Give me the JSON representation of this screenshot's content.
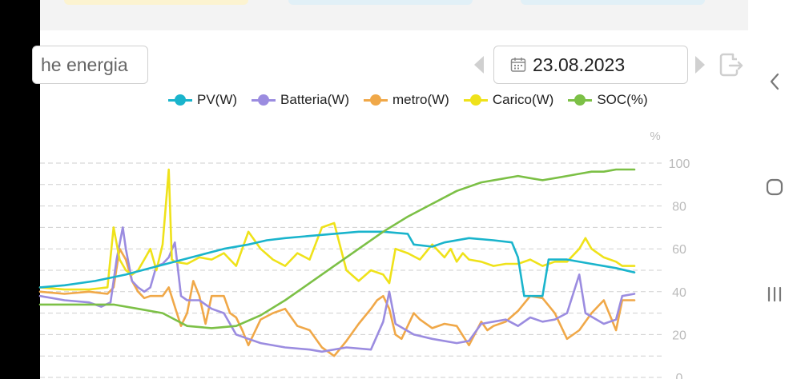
{
  "search": {
    "text": "he energia"
  },
  "date": {
    "value": "23.08.2023"
  },
  "colors": {
    "pv": "#1ab4cc",
    "battery": "#9b8ce0",
    "meter": "#f0a848",
    "load": "#efe21a",
    "soc": "#7cc046"
  },
  "icons": {
    "calendar": "calendar-icon",
    "prev": "prev-day-icon",
    "next": "next-day-icon",
    "export": "export-icon",
    "back": "back-icon",
    "home": "home-icon",
    "recents": "recents-icon"
  },
  "chart_data": {
    "type": "line",
    "legend_position": "top-right",
    "grid": true,
    "right_axis_unit": "%",
    "right_axis_ticks": [
      "100",
      "80",
      "60",
      "40",
      "20",
      "0"
    ],
    "ylim": [
      0,
      100
    ],
    "series": [
      {
        "name": "PV(W)",
        "key": "pv",
        "points": [
          [
            0,
            42
          ],
          [
            4,
            43
          ],
          [
            9,
            45
          ],
          [
            14,
            48
          ],
          [
            18,
            51
          ],
          [
            22,
            54
          ],
          [
            26,
            57
          ],
          [
            30,
            60
          ],
          [
            34,
            62
          ],
          [
            37,
            64
          ],
          [
            40,
            65
          ],
          [
            44,
            66
          ],
          [
            48,
            67
          ],
          [
            52,
            68
          ],
          [
            56,
            68
          ],
          [
            60,
            67
          ],
          [
            61,
            62
          ],
          [
            64,
            61
          ],
          [
            66,
            63
          ],
          [
            70,
            65
          ],
          [
            74,
            64
          ],
          [
            77,
            63
          ],
          [
            78,
            56
          ],
          [
            79,
            38
          ],
          [
            82,
            38
          ],
          [
            83,
            55
          ],
          [
            86,
            55
          ],
          [
            90,
            53
          ],
          [
            94,
            51
          ],
          [
            97,
            49
          ]
        ]
      },
      {
        "name": "Batteria(W)",
        "key": "battery",
        "points": [
          [
            0,
            38
          ],
          [
            4,
            36
          ],
          [
            8,
            35
          ],
          [
            10,
            33
          ],
          [
            11.5,
            35
          ],
          [
            12.5,
            55
          ],
          [
            13.5,
            70
          ],
          [
            14,
            60
          ],
          [
            15,
            45
          ],
          [
            16,
            42
          ],
          [
            17,
            40
          ],
          [
            18,
            42
          ],
          [
            19,
            52
          ],
          [
            20,
            53
          ],
          [
            21,
            56
          ],
          [
            22,
            63
          ],
          [
            23,
            38
          ],
          [
            24,
            36
          ],
          [
            26,
            36
          ],
          [
            28,
            32
          ],
          [
            30,
            30
          ],
          [
            32,
            20
          ],
          [
            34,
            18
          ],
          [
            36,
            16
          ],
          [
            40,
            14
          ],
          [
            44,
            13
          ],
          [
            46,
            12
          ],
          [
            50,
            14
          ],
          [
            54,
            13
          ],
          [
            56,
            26
          ],
          [
            57,
            40
          ],
          [
            58,
            25
          ],
          [
            61,
            20
          ],
          [
            64,
            18
          ],
          [
            68,
            16
          ],
          [
            70,
            17
          ],
          [
            72,
            25
          ],
          [
            74,
            26
          ],
          [
            76,
            27
          ],
          [
            78,
            24
          ],
          [
            80,
            28
          ],
          [
            82,
            26
          ],
          [
            84,
            27
          ],
          [
            86,
            30
          ],
          [
            88,
            48
          ],
          [
            89,
            30
          ],
          [
            92,
            25
          ],
          [
            94,
            27
          ],
          [
            95,
            38
          ],
          [
            97,
            39
          ]
        ]
      },
      {
        "name": "metro(W)",
        "key": "meter",
        "points": [
          [
            0,
            40
          ],
          [
            4,
            39
          ],
          [
            8,
            40
          ],
          [
            11,
            39
          ],
          [
            12,
            42
          ],
          [
            13,
            60
          ],
          [
            14,
            55
          ],
          [
            15,
            45
          ],
          [
            16,
            40
          ],
          [
            17,
            37
          ],
          [
            18,
            38
          ],
          [
            20,
            38
          ],
          [
            21,
            42
          ],
          [
            22,
            33
          ],
          [
            23,
            24
          ],
          [
            24,
            30
          ],
          [
            25,
            45
          ],
          [
            26,
            38
          ],
          [
            27,
            25
          ],
          [
            28,
            38
          ],
          [
            30,
            38
          ],
          [
            31,
            30
          ],
          [
            32,
            28
          ],
          [
            33,
            22
          ],
          [
            34,
            15
          ],
          [
            36,
            27
          ],
          [
            38,
            30
          ],
          [
            40,
            32
          ],
          [
            42,
            24
          ],
          [
            44,
            22
          ],
          [
            46,
            14
          ],
          [
            48,
            10
          ],
          [
            50,
            17
          ],
          [
            52,
            25
          ],
          [
            54,
            32
          ],
          [
            55,
            36
          ],
          [
            56,
            38
          ],
          [
            57,
            32
          ],
          [
            58,
            20
          ],
          [
            59,
            18
          ],
          [
            61,
            30
          ],
          [
            62,
            27
          ],
          [
            64,
            23
          ],
          [
            66,
            25
          ],
          [
            68,
            24
          ],
          [
            70,
            15
          ],
          [
            72,
            26
          ],
          [
            73,
            22
          ],
          [
            74,
            24
          ],
          [
            76,
            26
          ],
          [
            78,
            31
          ],
          [
            80,
            38
          ],
          [
            82,
            37
          ],
          [
            84,
            30
          ],
          [
            86,
            18
          ],
          [
            88,
            22
          ],
          [
            90,
            30
          ],
          [
            92,
            36
          ],
          [
            94,
            22
          ],
          [
            95,
            36
          ],
          [
            97,
            36
          ]
        ]
      },
      {
        "name": "Carico(W)",
        "key": "load",
        "points": [
          [
            0,
            42
          ],
          [
            4,
            41
          ],
          [
            8,
            41
          ],
          [
            11,
            42
          ],
          [
            12,
            70
          ],
          [
            13,
            55
          ],
          [
            14,
            50
          ],
          [
            15,
            48
          ],
          [
            16,
            50
          ],
          [
            17,
            55
          ],
          [
            18,
            60
          ],
          [
            19,
            50
          ],
          [
            20,
            62
          ],
          [
            21,
            97
          ],
          [
            21.5,
            55
          ],
          [
            22,
            54
          ],
          [
            24,
            53
          ],
          [
            26,
            56
          ],
          [
            28,
            55
          ],
          [
            30,
            58
          ],
          [
            32,
            52
          ],
          [
            34,
            68
          ],
          [
            36,
            60
          ],
          [
            38,
            55
          ],
          [
            40,
            52
          ],
          [
            42,
            58
          ],
          [
            44,
            55
          ],
          [
            46,
            70
          ],
          [
            48,
            72
          ],
          [
            50,
            50
          ],
          [
            52,
            45
          ],
          [
            54,
            50
          ],
          [
            56,
            48
          ],
          [
            57,
            44
          ],
          [
            58,
            60
          ],
          [
            60,
            58
          ],
          [
            62,
            55
          ],
          [
            64,
            62
          ],
          [
            66,
            56
          ],
          [
            67,
            60
          ],
          [
            68,
            54
          ],
          [
            69,
            58
          ],
          [
            70,
            55
          ],
          [
            72,
            54
          ],
          [
            74,
            52
          ],
          [
            76,
            53
          ],
          [
            78,
            53
          ],
          [
            80,
            55
          ],
          [
            82,
            52
          ],
          [
            84,
            54
          ],
          [
            86,
            54
          ],
          [
            88,
            60
          ],
          [
            89,
            65
          ],
          [
            90,
            60
          ],
          [
            92,
            56
          ],
          [
            94,
            54
          ],
          [
            95,
            52
          ],
          [
            97,
            52
          ]
        ]
      },
      {
        "name": "SOC(%)",
        "key": "soc",
        "points": [
          [
            0,
            34
          ],
          [
            8,
            34
          ],
          [
            12,
            34
          ],
          [
            16,
            32
          ],
          [
            20,
            30
          ],
          [
            22,
            27
          ],
          [
            24,
            24
          ],
          [
            28,
            23
          ],
          [
            32,
            24
          ],
          [
            36,
            29
          ],
          [
            40,
            36
          ],
          [
            44,
            44
          ],
          [
            48,
            52
          ],
          [
            52,
            60
          ],
          [
            56,
            68
          ],
          [
            60,
            75
          ],
          [
            64,
            81
          ],
          [
            68,
            87
          ],
          [
            72,
            91
          ],
          [
            76,
            93
          ],
          [
            78,
            94
          ],
          [
            80,
            93
          ],
          [
            82,
            92
          ],
          [
            84,
            93
          ],
          [
            86,
            94
          ],
          [
            88,
            95
          ],
          [
            90,
            96
          ],
          [
            92,
            96
          ],
          [
            94,
            97
          ],
          [
            97,
            97
          ]
        ]
      }
    ]
  }
}
